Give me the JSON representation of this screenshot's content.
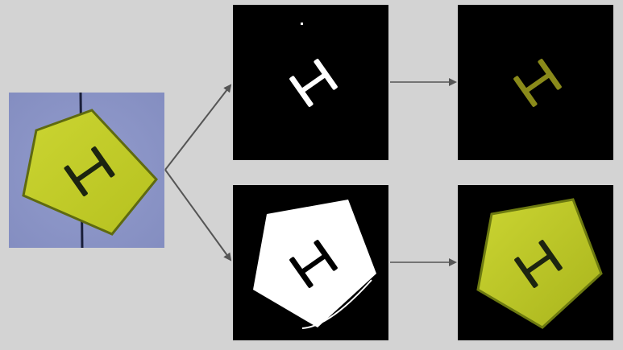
{
  "colors": {
    "background": "#d3d3d3",
    "source_background": "#8b95c8",
    "target_yellow": "#c6d12a",
    "target_edge": "#7d8a12",
    "glyph_dark": "#16200a",
    "mask_white": "#ffffff",
    "panel_black": "#000000",
    "arrow_gray": "#555555",
    "letter_result": "#8a8a1a"
  },
  "icons": {
    "source": "pentagon-target-with-letter-icon",
    "letter_mask": "letter-mask-icon",
    "letter_result": "extracted-letter-icon",
    "shape_mask": "shape-mask-icon",
    "shape_result": "extracted-shape-icon"
  }
}
